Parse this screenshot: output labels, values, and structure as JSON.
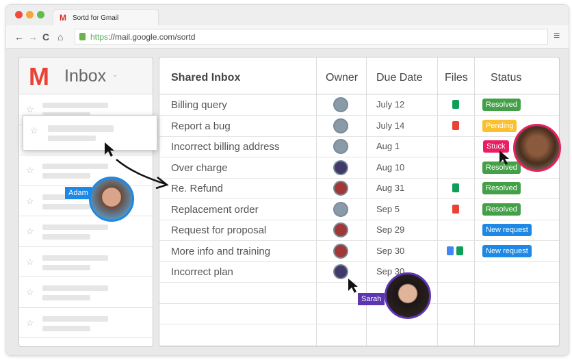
{
  "browser": {
    "tab_title": "Sortd for Gmail",
    "url_scheme": "https",
    "url_rest": "://mail.google.com/sortd"
  },
  "sidebar": {
    "title": "Inbox"
  },
  "table": {
    "headers": [
      "Shared Inbox",
      "Owner",
      "Due Date",
      "Files",
      "Status"
    ],
    "rows": [
      {
        "subject": "Billing query",
        "due": "July 12",
        "files": [
          "sheets"
        ],
        "status": "Resolved"
      },
      {
        "subject": "Report a bug",
        "due": "July 14",
        "files": [
          "pdf"
        ],
        "status": "Pending"
      },
      {
        "subject": "Incorrect billing address",
        "due": "Aug 1",
        "files": [],
        "status": "Stuck"
      },
      {
        "subject": "Over charge",
        "due": "Aug 10",
        "files": [],
        "status": "Resolved"
      },
      {
        "subject": "Re. Refund",
        "due": "Aug 31",
        "files": [
          "sheets"
        ],
        "status": "Resolved"
      },
      {
        "subject": "Replacement order",
        "due": "Sep 5",
        "files": [
          "pdf"
        ],
        "status": "Resolved"
      },
      {
        "subject": "Request for proposal",
        "due": "Sep 29",
        "files": [],
        "status": "New request"
      },
      {
        "subject": "More info and training",
        "due": "Sep 30",
        "files": [
          "docs",
          "sheets"
        ],
        "status": "New request"
      },
      {
        "subject": "Incorrect plan",
        "due": "Sep 30",
        "files": [],
        "status": ""
      }
    ]
  },
  "users": {
    "adam": "Adam",
    "sarah": "Sarah"
  },
  "colors": {
    "Resolved": "#43a047",
    "Pending": "#fbc02d",
    "Stuck": "#e91e63",
    "New request": "#1e88e5",
    "adam": "#1e88e5",
    "sarah": "#5e35b1"
  }
}
